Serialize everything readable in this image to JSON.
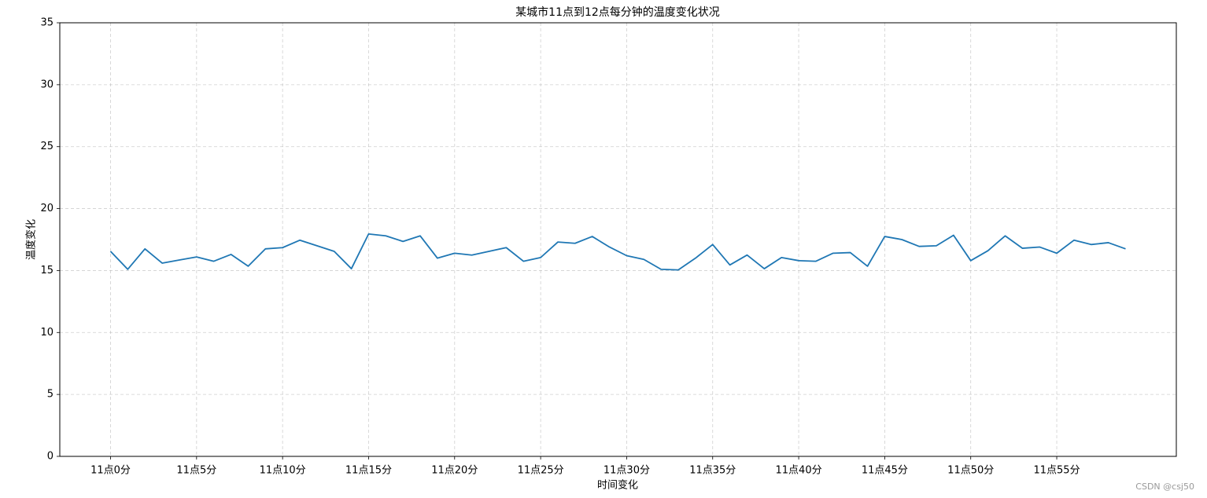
{
  "chart_data": {
    "type": "line",
    "title": "某城市11点到12点每分钟的温度变化状况",
    "xlabel": "时间变化",
    "ylabel": "温度变化",
    "x": [
      0,
      1,
      2,
      3,
      4,
      5,
      6,
      7,
      8,
      9,
      10,
      11,
      12,
      13,
      14,
      15,
      16,
      17,
      18,
      19,
      20,
      21,
      22,
      23,
      24,
      25,
      26,
      27,
      28,
      29,
      30,
      31,
      32,
      33,
      34,
      35,
      36,
      37,
      38,
      39,
      40,
      41,
      42,
      43,
      44,
      45,
      46,
      47,
      48,
      49,
      50,
      51,
      52,
      53,
      54,
      55,
      56,
      57,
      58,
      59
    ],
    "values": [
      16.55,
      15.1,
      16.75,
      15.6,
      15.85,
      16.1,
      15.75,
      16.3,
      15.35,
      16.75,
      16.85,
      17.45,
      17.0,
      16.55,
      15.15,
      17.95,
      17.8,
      17.35,
      17.8,
      16.0,
      16.4,
      16.25,
      16.55,
      16.85,
      15.75,
      16.05,
      17.3,
      17.2,
      17.75,
      16.9,
      16.2,
      15.9,
      15.1,
      15.05,
      16.0,
      17.1,
      15.45,
      16.25,
      15.15,
      16.05,
      15.8,
      15.75,
      16.4,
      16.45,
      15.35,
      17.75,
      17.5,
      16.95,
      17.0,
      17.85,
      15.8,
      16.6,
      17.8,
      16.8,
      16.9,
      16.4,
      17.45,
      17.1,
      17.25,
      16.75
    ],
    "color": "#1f77b4",
    "xlim": [
      -2.95,
      61.95
    ],
    "xticks": [
      {
        "value": 0,
        "label": "11点0分"
      },
      {
        "value": 5,
        "label": "11点5分"
      },
      {
        "value": 10,
        "label": "11点10分"
      },
      {
        "value": 15,
        "label": "11点15分"
      },
      {
        "value": 20,
        "label": "11点20分"
      },
      {
        "value": 25,
        "label": "11点25分"
      },
      {
        "value": 30,
        "label": "11点30分"
      },
      {
        "value": 35,
        "label": "11点35分"
      },
      {
        "value": 40,
        "label": "11点40分"
      },
      {
        "value": 45,
        "label": "11点45分"
      },
      {
        "value": 50,
        "label": "11点50分"
      },
      {
        "value": 55,
        "label": "11点55分"
      }
    ],
    "ylim": [
      0,
      35
    ],
    "yticks": [
      0,
      5,
      10,
      15,
      20,
      25,
      30,
      35
    ],
    "grid": true
  },
  "watermark": "CSDN @csj50"
}
